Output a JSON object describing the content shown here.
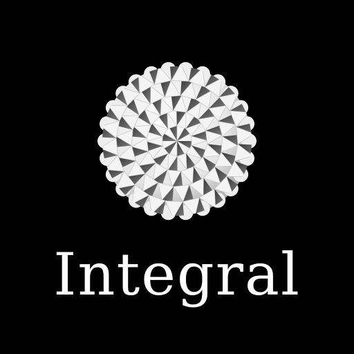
{
  "brand": {
    "name": "Integral",
    "logo_icon": "tessellated-sphere-icon"
  },
  "colors": {
    "background": "#000000",
    "text": "#ffffff",
    "emblem_light": "#f2f2f2",
    "emblem_shadow": "#3a3a3a"
  }
}
